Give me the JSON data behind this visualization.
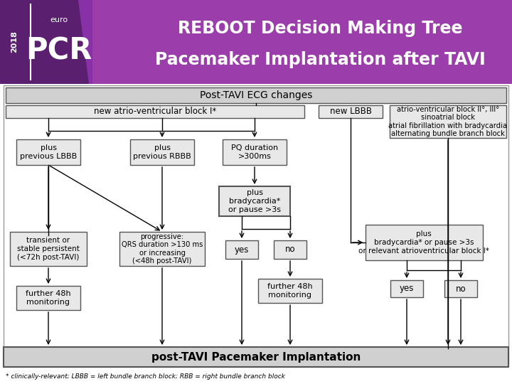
{
  "title_line1": "REBOOT Decision Making Tree",
  "title_line2": "Pacemaker Implantation after TAVI",
  "header_bg": "#7b2d8b",
  "header_bg2": "#9b3dab",
  "logo_dark": "#5a1f6e",
  "body_border": "#888888",
  "box_bg": "#e8e8e8",
  "box_bg_dark": "#cccccc",
  "bottom_bar_text": "post-TAVI Pacemaker Implantation",
  "footnote": "* clinically-relevant; LBBB = left bundle branch block; RBB = right bundle branch block"
}
